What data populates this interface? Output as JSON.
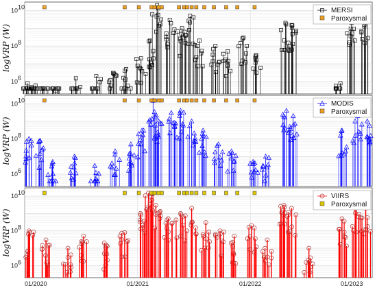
{
  "chart_data": [
    {
      "type": "scatter",
      "ylabel": "logVRP (W)",
      "yscale": "log",
      "ylim": [
        200000,
        30000000000
      ],
      "yticks": [
        "10^6",
        "10^8",
        "10^10"
      ],
      "xlim": [
        "2020-01-01",
        "2023-01-31"
      ],
      "grid": true,
      "legend_position": "top-right",
      "series": [
        {
          "name": "MERSI",
          "marker": "square",
          "color": "#000000",
          "x": [
            "2020-01-10",
            "2020-02-05",
            "2020-03-01",
            "2020-04-10",
            "2020-06-15",
            "2020-08-20",
            "2020-10-15",
            "2020-11-25",
            "2021-01-12",
            "2021-02-10",
            "2021-03-05",
            "2021-04-15",
            "2021-05-25",
            "2021-06-20",
            "2021-07-20",
            "2021-09-10",
            "2021-10-20",
            "2021-12-10",
            "2022-01-20",
            "2022-04-25",
            "2022-05-15",
            "2022-10-20",
            "2022-11-25",
            "2023-01-10"
          ],
          "y": [
            800000,
            600000,
            400000,
            300000,
            1500000,
            2000000,
            3000000,
            5000000,
            20000000,
            200000000,
            20000000000,
            3000000000,
            1000000000,
            5000000000,
            200000000,
            100000000,
            50000000,
            300000000,
            30000000,
            2000000000,
            1500000000,
            800000,
            2000000000,
            3000000000
          ]
        },
        {
          "name": "Paroxysmal",
          "marker": "square",
          "color": "#f0a020",
          "x": [
            "2020-03-05",
            "2020-11-20",
            "2021-01-05",
            "2021-02-15",
            "2021-02-25",
            "2021-03-10",
            "2021-03-20",
            "2021-05-15",
            "2021-06-01",
            "2021-06-10",
            "2021-06-25",
            "2021-07-10",
            "2021-08-05",
            "2021-09-05",
            "2021-10-15",
            "2021-11-20",
            "2022-01-15"
          ],
          "y": [
            1,
            1,
            1,
            1,
            1,
            1,
            1,
            1,
            1,
            1,
            1,
            1,
            1,
            1,
            1,
            1,
            1
          ]
        }
      ]
    },
    {
      "type": "scatter",
      "ylabel": "logVRP (W)",
      "yscale": "log",
      "ylim": [
        200000,
        30000000000
      ],
      "yticks": [
        "10^6",
        "10^8",
        "10^10"
      ],
      "xlim": [
        "2020-01-01",
        "2023-01-31"
      ],
      "grid": true,
      "legend_position": "top-right",
      "series": [
        {
          "name": "MODIS",
          "marker": "triangle",
          "color": "#0000ff",
          "x": [
            "2020-01-15",
            "2020-02-20",
            "2020-04-01",
            "2020-06-10",
            "2020-08-15",
            "2020-10-20",
            "2020-12-10",
            "2021-01-15",
            "2021-02-20",
            "2021-03-10",
            "2021-04-20",
            "2021-05-20",
            "2021-06-25",
            "2021-08-01",
            "2021-09-20",
            "2021-11-01",
            "2022-01-10",
            "2022-02-20",
            "2022-04-28",
            "2022-05-20",
            "2022-10-25",
            "2022-12-15",
            "2023-01-15"
          ],
          "y": [
            100000000,
            80000000,
            5000000,
            10000000,
            3000000,
            20000000,
            50000000,
            300000000,
            15000000000,
            1000000000,
            3000000000,
            4000000000,
            1000000000,
            300000000,
            50000000,
            20000000,
            5000000,
            10000000,
            4000000000,
            2000000000,
            300000000,
            2000000000,
            1000000000
          ]
        },
        {
          "name": "Paroxysmal",
          "marker": "square",
          "color": "#f0a020",
          "x": [
            "2020-03-05",
            "2020-11-20",
            "2021-01-05",
            "2021-02-15",
            "2021-02-25",
            "2021-03-10",
            "2021-03-20",
            "2021-05-15",
            "2021-06-01",
            "2021-06-10",
            "2021-06-25",
            "2021-07-10",
            "2021-08-05",
            "2021-09-05",
            "2021-10-15",
            "2021-11-20",
            "2022-01-15"
          ],
          "y": [
            1,
            1,
            1,
            1,
            1,
            1,
            1,
            1,
            1,
            1,
            1,
            1,
            1,
            1,
            1,
            1,
            1
          ]
        }
      ]
    },
    {
      "type": "scatter",
      "ylabel": "logVRP (W)",
      "yscale": "log",
      "ylim": [
        200000,
        30000000000
      ],
      "yticks": [
        "10^6",
        "10^8",
        "10^10"
      ],
      "xlim": [
        "2020-01-01",
        "2023-01-31"
      ],
      "xticks": [
        "01/2020",
        "01/2021",
        "01/2022",
        "01/2023"
      ],
      "grid": true,
      "legend_position": "top-right",
      "series": [
        {
          "name": "VIIRS",
          "marker": "circle",
          "color": "#ff0000",
          "x": [
            "2020-01-15",
            "2020-03-10",
            "2020-05-20",
            "2020-07-10",
            "2020-09-15",
            "2020-11-20",
            "2021-01-10",
            "2021-02-05",
            "2021-03-01",
            "2021-04-10",
            "2021-05-20",
            "2021-06-25",
            "2021-08-10",
            "2021-09-25",
            "2021-11-10",
            "2022-01-05",
            "2022-02-25",
            "2022-04-20",
            "2022-05-15",
            "2022-07-10",
            "2022-10-25",
            "2022-12-10",
            "2023-01-10"
          ],
          "y": [
            100000000,
            30000000,
            10000000,
            50000000,
            20000000,
            80000000,
            1000000000,
            15000000000,
            3000000000,
            500000000,
            1000000000,
            2000000000,
            300000000,
            100000000,
            50000000,
            200000000,
            30000000,
            3000000000,
            2000000000,
            10000000,
            500000000,
            3000000000,
            2000000000
          ]
        },
        {
          "name": "Paroxysmal",
          "marker": "square",
          "color": "#e0c800",
          "x": [
            "2020-03-05",
            "2020-11-20",
            "2021-01-05",
            "2021-02-15",
            "2021-02-25",
            "2021-03-10",
            "2021-03-20",
            "2021-05-15",
            "2021-06-01",
            "2021-06-10",
            "2021-06-25",
            "2021-07-10",
            "2021-08-05",
            "2021-09-05",
            "2021-10-15",
            "2021-11-20",
            "2022-01-15"
          ],
          "y": [
            1,
            1,
            1,
            1,
            1,
            1,
            1,
            1,
            1,
            1,
            1,
            1,
            1,
            1,
            1,
            1,
            1
          ]
        }
      ]
    }
  ],
  "labels": {
    "panel1_legend": [
      "MERSI",
      "Paroxysmal"
    ],
    "panel2_legend": [
      "MODIS",
      "Paroxysmal"
    ],
    "panel3_legend": [
      "VIIRS",
      "Paroxysmal"
    ],
    "ylabel_text": "logVRP (W)",
    "yticks": [
      "10",
      "10",
      "10"
    ],
    "ytick_exps": [
      "6",
      "8",
      "10"
    ],
    "xticks": [
      "01/2020",
      "01/2021",
      "01/2022",
      "01/2023"
    ]
  }
}
